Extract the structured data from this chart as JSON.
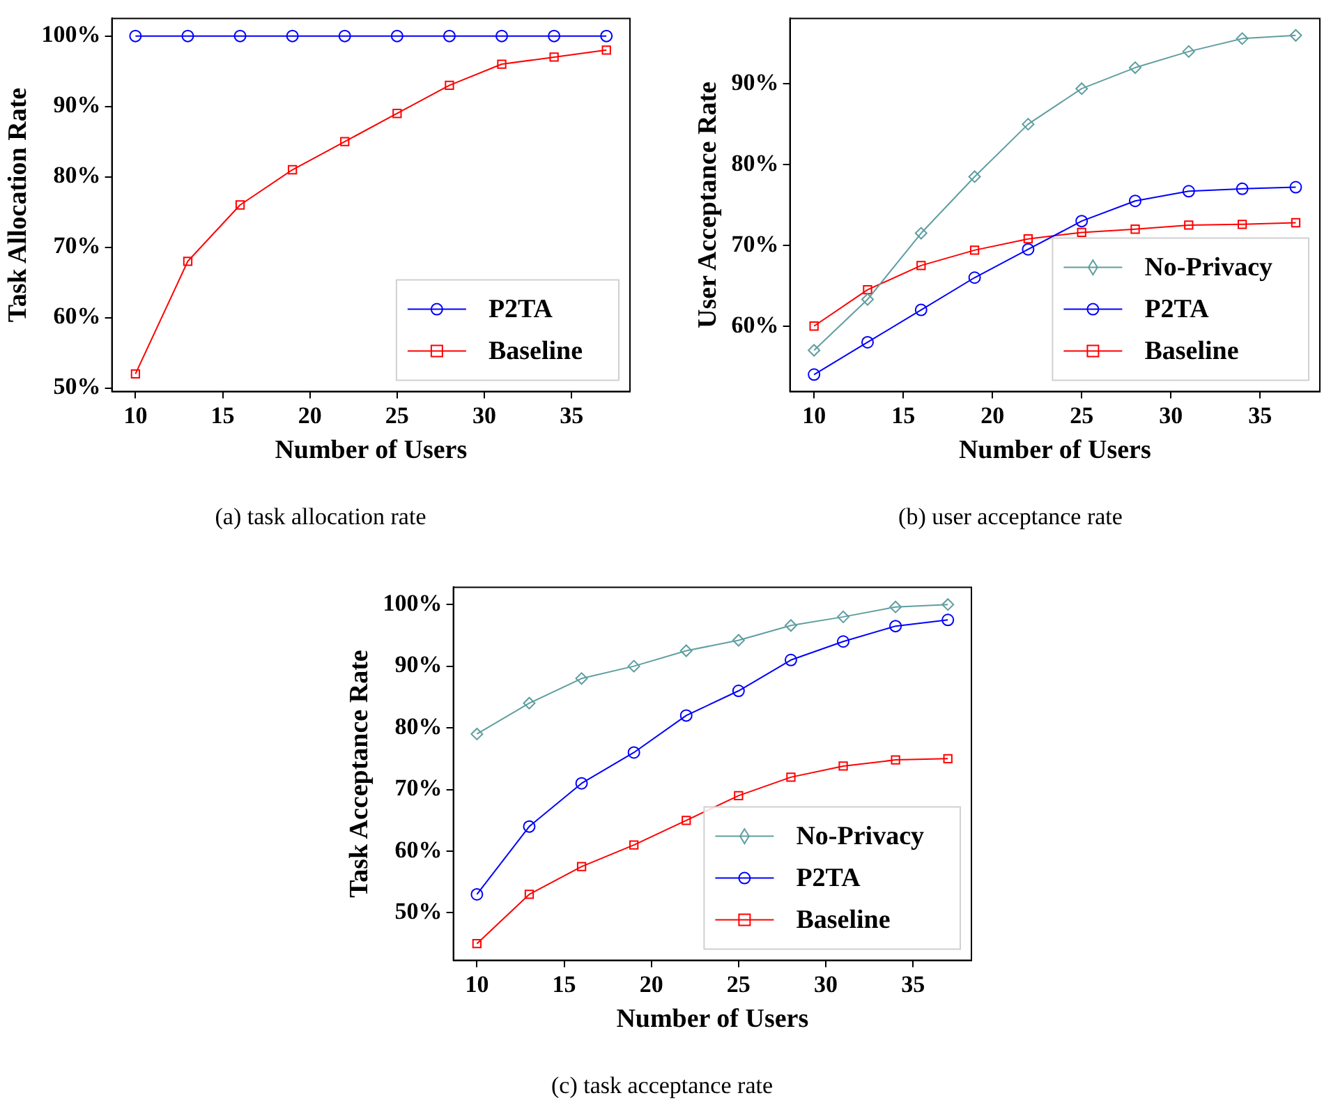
{
  "chart_data": [
    {
      "type": "line",
      "xlabel": "Number of Users",
      "ylabel": "Task Allocation Rate",
      "annotations": [
        "(a) task allocation rate"
      ],
      "x": [
        10,
        13,
        16,
        19,
        22,
        25,
        28,
        31,
        34,
        37
      ],
      "xlim": [
        8.65,
        38.35
      ],
      "xticks": [
        10,
        15,
        20,
        25,
        30,
        35
      ],
      "ylim": [
        49.5,
        102.5
      ],
      "yticks": [
        {
          "value": 50,
          "label": "50%"
        },
        {
          "value": 60,
          "label": "60%"
        },
        {
          "value": 70,
          "label": "70%"
        },
        {
          "value": 80,
          "label": "80%"
        },
        {
          "value": 90,
          "label": "90%"
        },
        {
          "value": 100,
          "label": "100%"
        }
      ],
      "legend": "bottom right",
      "grid": false,
      "line_style": "solid",
      "series": [
        {
          "name": "P2TA",
          "color": "#0000ff",
          "marker": "circle",
          "values": [
            100,
            100,
            100,
            100,
            100,
            100,
            100,
            100,
            100,
            100
          ]
        },
        {
          "name": "Baseline",
          "color": "#ff0000",
          "marker": "square",
          "values": [
            52,
            68,
            76,
            81,
            85,
            89,
            93,
            96,
            97,
            98
          ]
        }
      ]
    },
    {
      "type": "line",
      "xlabel": "Number of Users",
      "ylabel": "User Acceptance Rate",
      "annotations": [
        "(b) user acceptance rate"
      ],
      "x": [
        10,
        13,
        16,
        19,
        22,
        25,
        28,
        31,
        34,
        37
      ],
      "xlim": [
        8.65,
        38.35
      ],
      "xticks": [
        10,
        15,
        20,
        25,
        30,
        35
      ],
      "ylim": [
        51.9,
        98.1
      ],
      "yticks": [
        {
          "value": 60,
          "label": "60%"
        },
        {
          "value": 70,
          "label": "70%"
        },
        {
          "value": 80,
          "label": "80%"
        },
        {
          "value": 90,
          "label": "90%"
        }
      ],
      "legend": "bottom right",
      "grid": false,
      "line_style": "solid",
      "series": [
        {
          "name": "No-Privacy",
          "color": "#5f9ea0",
          "marker": "diamond",
          "values": [
            57,
            63.3,
            71.5,
            78.5,
            85,
            89.4,
            92,
            94,
            95.6,
            96
          ]
        },
        {
          "name": "P2TA",
          "color": "#0000ff",
          "marker": "circle",
          "values": [
            54,
            58,
            62,
            66,
            69.5,
            73,
            75.5,
            76.7,
            77,
            77.2
          ]
        },
        {
          "name": "Baseline",
          "color": "#ff0000",
          "marker": "square",
          "values": [
            60,
            64.5,
            67.5,
            69.4,
            70.8,
            71.6,
            72,
            72.5,
            72.6,
            72.8
          ]
        }
      ]
    },
    {
      "type": "line",
      "xlabel": "Number of Users",
      "ylabel": "Task Acceptance Rate",
      "annotations": [
        "(c) task acceptance rate"
      ],
      "x": [
        10,
        13,
        16,
        19,
        22,
        25,
        28,
        31,
        34,
        37
      ],
      "xlim": [
        8.65,
        38.35
      ],
      "xticks": [
        10,
        15,
        20,
        25,
        30,
        35
      ],
      "ylim": [
        42.3,
        102.8
      ],
      "yticks": [
        {
          "value": 50,
          "label": "50%"
        },
        {
          "value": 60,
          "label": "60%"
        },
        {
          "value": 70,
          "label": "70%"
        },
        {
          "value": 80,
          "label": "80%"
        },
        {
          "value": 90,
          "label": "90%"
        },
        {
          "value": 100,
          "label": "100%"
        }
      ],
      "legend": "bottom right",
      "grid": false,
      "line_style": "solid",
      "series": [
        {
          "name": "No-Privacy",
          "color": "#5f9ea0",
          "marker": "diamond",
          "values": [
            79,
            84,
            88,
            90,
            92.5,
            94.2,
            96.6,
            98,
            99.6,
            100
          ]
        },
        {
          "name": "P2TA",
          "color": "#0000ff",
          "marker": "circle",
          "values": [
            53,
            64,
            71,
            76,
            82,
            86,
            91,
            94,
            96.5,
            97.5
          ]
        },
        {
          "name": "Baseline",
          "color": "#ff0000",
          "marker": "square",
          "values": [
            45,
            53,
            57.5,
            61,
            65,
            69,
            72,
            73.8,
            74.8,
            75
          ]
        }
      ]
    }
  ]
}
